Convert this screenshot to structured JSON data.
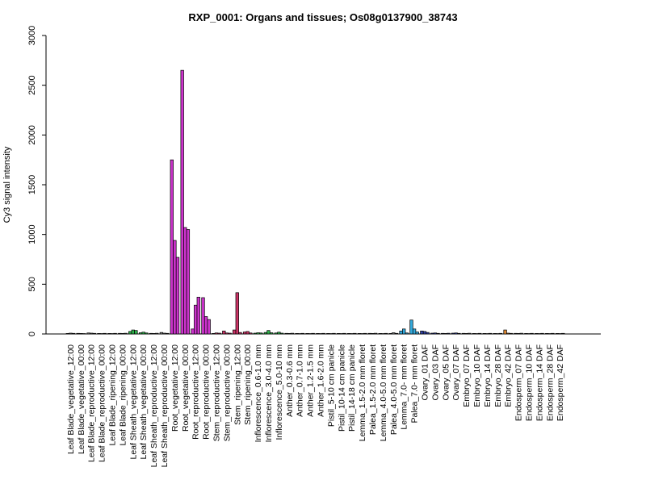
{
  "chart_data": {
    "type": "bar",
    "title": "RXP_0001: Organs and tissues; Os08g0137900_38743",
    "xlabel": "",
    "ylabel": "Cy3 signal intensity",
    "ylim": [
      0,
      3000
    ],
    "yticks": [
      "0",
      "500",
      "1000",
      "1500",
      "2000",
      "2500",
      "3000"
    ],
    "grid": false,
    "legend": "none",
    "categories": [
      "Leaf Blade_vegetative_12:00",
      "Leaf Blade_vegetative_00:00",
      "Leaf Blade_reproductive_12:00",
      "Leaf Blade_reproductive_00:00",
      "Leaf Blade_ripening_12:00",
      "Leaf Blade_ripening_00:00",
      "Leaf Sheath_vegetative_12:00",
      "Leaf Sheath_vegetative_00:00",
      "Leaf Sheath_reproductive_12:00",
      "Leaf Sheath_reproductive_00:00",
      "Root_vegetative_12:00",
      "Root_vegetative_00:00",
      "Root_reproductive_12:00",
      "Root_reproductive_00:00",
      "Stem_reproductive_12:00",
      "Stem_reproductive_00:00",
      "Stem_ripening_12:00",
      "Stem_ripening_00:00",
      "Inflorescence_0.6-1.0 mm",
      "Inflorescence_3.0-4.0 mm",
      "Inflorescence_5.0-10 mm",
      "Anther_0.3-0.6 mm",
      "Anther_0.7-1.0 mm",
      "Anther_1.2-1.5 mm",
      "Anther_1.6-2.0 mm",
      "Pistil_5-10 cm panicle",
      "Pistil_10-14 cm panicle",
      "Pistil_14-18 cm panicle",
      "Lemma_1.5-2.0 mm floret",
      "Palea_1.5-2.0 mm floret",
      "Lemma_4.0-5.0 mm floret",
      "Palea_4.0-5.0 mm floret",
      "Lemma_7.0- mm floret",
      "Palea_7.0- mm floret",
      "Ovary_01 DAF",
      "Ovary_03 DAF",
      "Ovary_05 DAF",
      "Ovary_07 DAF",
      "Embryo_07 DAF",
      "Embryo_10 DAF",
      "Embryo_14 DAF",
      "Embryo_28 DAF",
      "Embryo_42 DAF",
      "Endosperm_07 DAF",
      "Endosperm_10 DAF",
      "Endosperm_14 DAF",
      "Endosperm_28 DAF",
      "Endosperm_42 DAF"
    ],
    "groups": [
      {
        "color": "#808080",
        "values": [
          5,
          8,
          6
        ]
      },
      {
        "color": "#808080",
        "values": [
          6,
          5,
          4
        ]
      },
      {
        "color": "#808080",
        "values": [
          10,
          8,
          6
        ]
      },
      {
        "color": "#808080",
        "values": [
          5,
          4,
          6
        ]
      },
      {
        "color": "#808080",
        "values": [
          5,
          4,
          6
        ]
      },
      {
        "color": "#808080",
        "values": [
          6,
          5,
          7
        ]
      },
      {
        "color": "#2db34a",
        "values": [
          25,
          40,
          35
        ]
      },
      {
        "color": "#2db34a",
        "values": [
          12,
          18,
          10
        ]
      },
      {
        "color": "#808080",
        "values": [
          6,
          5,
          7
        ]
      },
      {
        "color": "#808080",
        "values": [
          15,
          8,
          6
        ]
      },
      {
        "color": "#cc33cc",
        "values": [
          1750,
          940,
          770
        ]
      },
      {
        "color": "#cc33cc",
        "values": [
          2650,
          1070,
          1050
        ]
      },
      {
        "color": "#cc33cc",
        "values": [
          50,
          290,
          370
        ]
      },
      {
        "color": "#cc33cc",
        "values": [
          365,
          175,
          145
        ]
      },
      {
        "color": "#cc3366",
        "values": [
          5,
          10,
          8
        ]
      },
      {
        "color": "#cc3366",
        "values": [
          30,
          10,
          8
        ]
      },
      {
        "color": "#cc3366",
        "values": [
          40,
          415,
          15
        ]
      },
      {
        "color": "#cc3366",
        "values": [
          20,
          25,
          10
        ]
      },
      {
        "color": "#2db34a",
        "values": [
          8,
          12,
          10
        ]
      },
      {
        "color": "#2db34a",
        "values": [
          15,
          35,
          12
        ]
      },
      {
        "color": "#2db34a",
        "values": [
          10,
          18,
          8
        ]
      },
      {
        "color": "#808080",
        "values": [
          6,
          5,
          7
        ]
      },
      {
        "color": "#808080",
        "values": [
          5,
          4,
          6
        ]
      },
      {
        "color": "#808080",
        "values": [
          5,
          4,
          6
        ]
      },
      {
        "color": "#808080",
        "values": [
          5,
          4,
          6
        ]
      },
      {
        "color": "#808080",
        "values": [
          5,
          4,
          6
        ]
      },
      {
        "color": "#808080",
        "values": [
          5,
          4,
          6
        ]
      },
      {
        "color": "#808080",
        "values": [
          5,
          4,
          6
        ]
      },
      {
        "color": "#808080",
        "values": [
          5,
          4,
          6
        ]
      },
      {
        "color": "#808080",
        "values": [
          6,
          5,
          7
        ]
      },
      {
        "color": "#808080",
        "values": [
          5,
          4,
          6
        ]
      },
      {
        "color": "#808080",
        "values": [
          5,
          12,
          6
        ]
      },
      {
        "color": "#33aadd",
        "values": [
          30,
          50,
          10
        ]
      },
      {
        "color": "#33aadd",
        "values": [
          140,
          50,
          20
        ]
      },
      {
        "color": "#3344aa",
        "values": [
          30,
          25,
          15
        ]
      },
      {
        "color": "#3344aa",
        "values": [
          8,
          10,
          6
        ]
      },
      {
        "color": "#3344aa",
        "values": [
          6,
          5,
          7
        ]
      },
      {
        "color": "#3344aa",
        "values": [
          8,
          10,
          6
        ]
      },
      {
        "color": "#808080",
        "values": [
          6,
          5,
          7
        ]
      },
      {
        "color": "#808080",
        "values": [
          5,
          4,
          6
        ]
      },
      {
        "color": "#808080",
        "values": [
          5,
          4,
          6
        ]
      },
      {
        "color": "#808080",
        "values": [
          5,
          4,
          6
        ]
      },
      {
        "color": "#dd8833",
        "values": [
          40,
          8,
          6
        ]
      },
      {
        "color": "#808080",
        "values": [
          6,
          5,
          7
        ]
      },
      {
        "color": "#808080",
        "values": [
          5,
          4,
          6
        ]
      },
      {
        "color": "#808080",
        "values": [
          5,
          4,
          6
        ]
      },
      {
        "color": "#808080",
        "values": [
          5,
          4,
          6
        ]
      },
      {
        "color": "#808080",
        "values": [
          5,
          4,
          6
        ]
      }
    ]
  }
}
